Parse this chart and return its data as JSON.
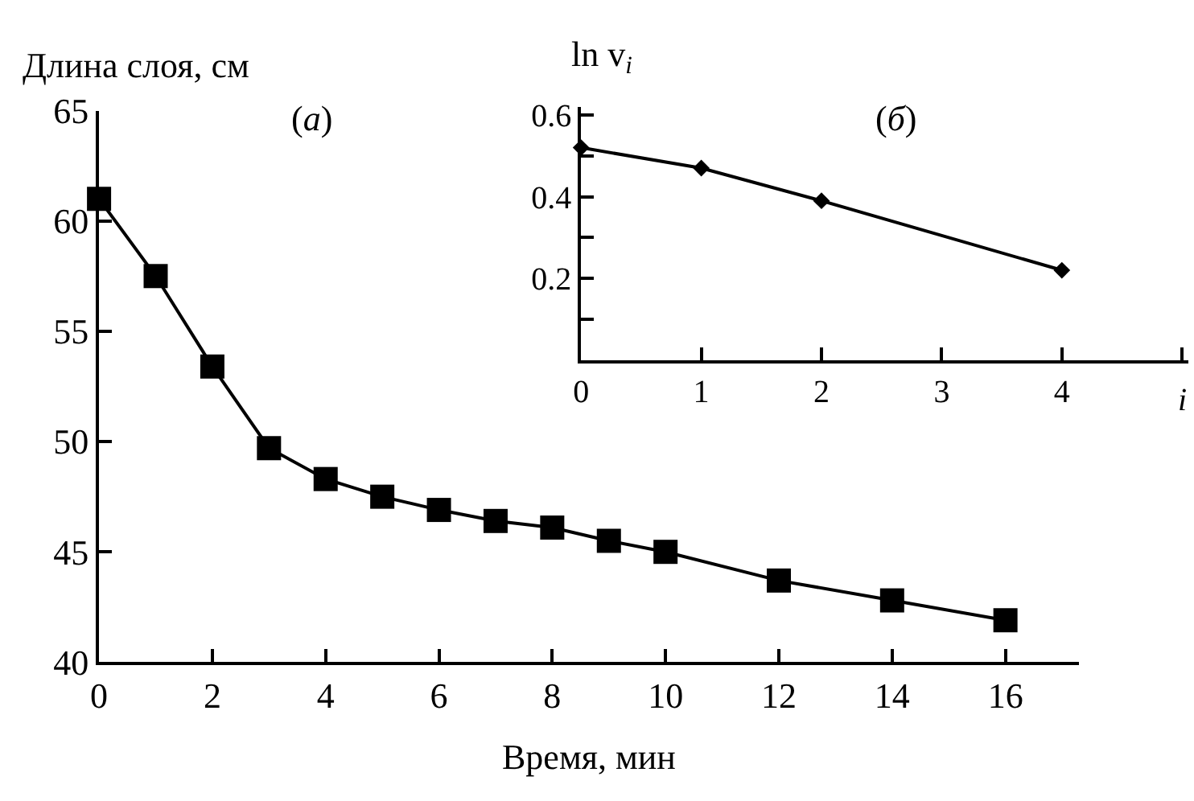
{
  "chart_data": [
    {
      "type": "line",
      "ylabel": "Длина слоя, см",
      "xlabel": "Время, мин",
      "annotations": [
        "(а)"
      ],
      "x": [
        0,
        1,
        2,
        3,
        4,
        5,
        6,
        7,
        8,
        9,
        10,
        12,
        14,
        16
      ],
      "values": [
        61.0,
        57.5,
        53.4,
        49.7,
        48.3,
        47.5,
        46.9,
        46.4,
        46.1,
        45.5,
        45.0,
        43.7,
        42.8,
        41.9
      ],
      "color": "#000000",
      "marker": "square",
      "line_style": "solid",
      "xlim": [
        0,
        17.3
      ],
      "xticks": [
        0,
        2,
        4,
        6,
        8,
        10,
        12,
        14,
        16
      ],
      "ylim": [
        40,
        65
      ],
      "yticks": [
        40,
        45,
        50,
        55,
        60,
        65
      ]
    },
    {
      "type": "line",
      "ylabel": "ln v$_{i}$",
      "xlabel": "i",
      "annotations": [
        "(б)"
      ],
      "x": [
        0,
        1,
        2,
        4
      ],
      "values": [
        0.52,
        0.47,
        0.39,
        0.22
      ],
      "color": "#000000",
      "marker": "diamond",
      "line_style": "solid",
      "xlim": [
        0,
        5.05
      ],
      "xticks": [
        0,
        1,
        2,
        3,
        4,
        {
          "value": 5,
          "label": null
        }
      ],
      "ylim": [
        0,
        0.62
      ],
      "yticks": [
        {
          "value": 0.1,
          "label": null
        },
        0.2,
        {
          "value": 0.3,
          "label": null
        },
        0.4,
        {
          "value": 0.5,
          "label": null
        },
        0.6
      ]
    }
  ]
}
